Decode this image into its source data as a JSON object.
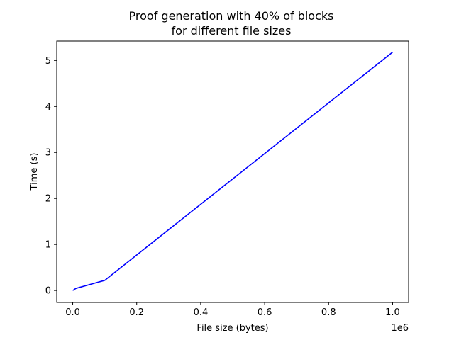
{
  "chart_data": {
    "type": "line",
    "title_lines": [
      "Proof generation with 40% of blocks",
      "for different file sizes"
    ],
    "xlabel": "File size (bytes)",
    "ylabel": "Time (s)",
    "x_offset_label": "1e6",
    "x_scale": 1000000,
    "xlim": [
      -50000,
      1050000
    ],
    "ylim": [
      -0.26,
      5.42
    ],
    "x_ticks": [
      0,
      200000,
      400000,
      600000,
      800000,
      1000000
    ],
    "x_tick_labels": [
      "0.0",
      "0.2",
      "0.4",
      "0.6",
      "0.8",
      "1.0"
    ],
    "y_ticks": [
      0,
      1,
      2,
      3,
      4,
      5
    ],
    "y_tick_labels": [
      "0",
      "1",
      "2",
      "3",
      "4",
      "5"
    ],
    "grid": false,
    "series": [
      {
        "color": "#0000ff",
        "x": [
          0,
          10000,
          100000,
          1000000
        ],
        "y": [
          0.0,
          0.045,
          0.22,
          5.18
        ]
      }
    ]
  }
}
